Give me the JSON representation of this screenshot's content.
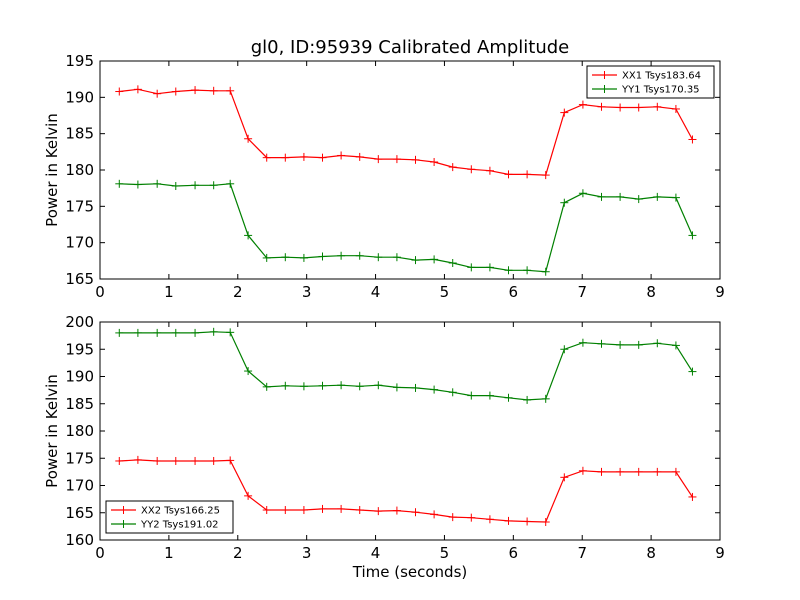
{
  "chart_data": [
    {
      "type": "line",
      "title": "gl0, ID:95939 Calibrated Amplitude",
      "xlabel": "",
      "ylabel": "Power in Kelvin",
      "xlim": [
        0,
        9
      ],
      "ylim": [
        165,
        195
      ],
      "xticks": [
        "0",
        "1",
        "2",
        "3",
        "4",
        "5",
        "6",
        "7",
        "8",
        "9"
      ],
      "yticks": [
        "165",
        "170",
        "175",
        "180",
        "185",
        "190",
        "195"
      ],
      "legend_position": "top-right",
      "grid": false,
      "x": [
        0.28,
        0.55,
        0.83,
        1.1,
        1.38,
        1.65,
        1.89,
        2.15,
        2.42,
        2.69,
        2.96,
        3.23,
        3.5,
        3.77,
        4.04,
        4.31,
        4.58,
        4.85,
        5.12,
        5.39,
        5.66,
        5.93,
        6.2,
        6.47,
        6.74,
        7.01,
        7.28,
        7.55,
        7.82,
        8.09,
        8.36,
        8.6
      ],
      "series": [
        {
          "name": "XX1 Tsys183.64",
          "color": "#ff0000",
          "values": [
            190.8,
            191.1,
            190.5,
            190.8,
            191.0,
            190.9,
            190.9,
            184.3,
            181.7,
            181.7,
            181.8,
            181.7,
            182.0,
            181.8,
            181.5,
            181.5,
            181.4,
            181.1,
            180.4,
            180.1,
            179.9,
            179.4,
            179.4,
            179.3,
            187.9,
            189.0,
            188.7,
            188.6,
            188.6,
            188.7,
            188.4,
            184.2
          ]
        },
        {
          "name": "YY1 Tsys170.35",
          "color": "#008000",
          "values": [
            178.1,
            178.0,
            178.1,
            177.8,
            177.9,
            177.9,
            178.1,
            171.0,
            167.9,
            168.0,
            167.9,
            168.1,
            168.2,
            168.2,
            168.0,
            168.0,
            167.6,
            167.7,
            167.2,
            166.6,
            166.6,
            166.2,
            166.2,
            166.0,
            175.5,
            176.8,
            176.3,
            176.3,
            176.0,
            176.3,
            176.2,
            171.0
          ]
        }
      ]
    },
    {
      "type": "line",
      "title": "",
      "xlabel": "Time (seconds)",
      "ylabel": "Power in Kelvin",
      "xlim": [
        0,
        9
      ],
      "ylim": [
        160,
        200
      ],
      "xticks": [
        "0",
        "1",
        "2",
        "3",
        "4",
        "5",
        "6",
        "7",
        "8",
        "9"
      ],
      "yticks": [
        "160",
        "165",
        "170",
        "175",
        "180",
        "185",
        "190",
        "195",
        "200"
      ],
      "legend_position": "bottom-left",
      "grid": false,
      "x": [
        0.28,
        0.55,
        0.83,
        1.1,
        1.38,
        1.65,
        1.89,
        2.15,
        2.42,
        2.69,
        2.96,
        3.23,
        3.5,
        3.77,
        4.04,
        4.31,
        4.58,
        4.85,
        5.12,
        5.39,
        5.66,
        5.93,
        6.2,
        6.47,
        6.74,
        7.01,
        7.28,
        7.55,
        7.82,
        8.09,
        8.36,
        8.6
      ],
      "series": [
        {
          "name": "XX2 Tsys166.25",
          "color": "#ff0000",
          "values": [
            174.5,
            174.7,
            174.5,
            174.5,
            174.5,
            174.5,
            174.6,
            168.1,
            165.5,
            165.5,
            165.5,
            165.7,
            165.7,
            165.5,
            165.3,
            165.4,
            165.1,
            164.7,
            164.2,
            164.1,
            163.8,
            163.5,
            163.4,
            163.3,
            171.5,
            172.7,
            172.5,
            172.5,
            172.5,
            172.5,
            172.5,
            167.9
          ]
        },
        {
          "name": "YY2 Tsys191.02",
          "color": "#008000",
          "values": [
            198.0,
            198.0,
            198.0,
            198.0,
            198.0,
            198.2,
            198.1,
            191.0,
            188.1,
            188.3,
            188.2,
            188.3,
            188.4,
            188.2,
            188.4,
            188.0,
            187.9,
            187.6,
            187.1,
            186.5,
            186.5,
            186.1,
            185.7,
            185.9,
            195.0,
            196.2,
            196.0,
            195.8,
            195.8,
            196.1,
            195.7,
            190.9
          ]
        }
      ]
    }
  ]
}
